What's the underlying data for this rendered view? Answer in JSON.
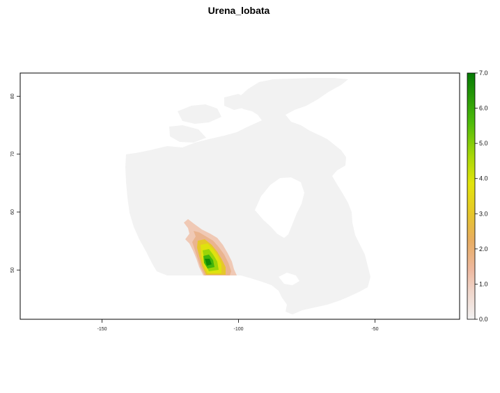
{
  "map": {
    "title": "Urena_lobata",
    "x_axis": {
      "ticks": [
        "-150",
        "-100",
        "-50"
      ],
      "values": [
        -150,
        -100,
        -50
      ],
      "range": [
        -180,
        -19
      ]
    },
    "y_axis": {
      "ticks": [
        "50",
        "60",
        "70",
        "80"
      ],
      "values": [
        50,
        60,
        70,
        80
      ],
      "range": [
        41.5,
        84
      ]
    },
    "land_color": "#f2f2f2",
    "frame_color": "#000000"
  },
  "legend": {
    "ticks": [
      "0.0",
      "1.0",
      "2.0",
      "3.0",
      "4.0",
      "5.0",
      "6.0",
      "7.0"
    ],
    "values": [
      0,
      1,
      2,
      3,
      4,
      5,
      6,
      7
    ],
    "range": [
      0,
      7.0
    ],
    "colors": [
      "#f2f2f2",
      "#f0c9b5",
      "#e8a85f",
      "#e6bd2c",
      "#e4e20e",
      "#a8d808",
      "#56bf0b",
      "#1a9a0a",
      "#067a05"
    ]
  },
  "suitability_region": {
    "description_levels": [
      1,
      2,
      3,
      4,
      5,
      6,
      7
    ]
  }
}
